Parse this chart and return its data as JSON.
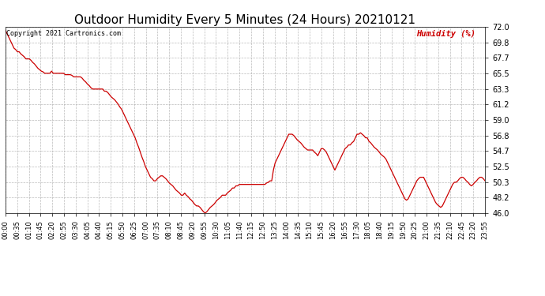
{
  "title": "Outdoor Humidity Every 5 Minutes (24 Hours) 20210121",
  "ylabel": "Humidity (%)",
  "copyright": "Copyright 2021 Cartronics.com",
  "line_color": "#cc0000",
  "bg_color": "#ffffff",
  "grid_color": "#aaaaaa",
  "ylim": [
    46.0,
    72.0
  ],
  "yticks": [
    46.0,
    48.2,
    50.3,
    52.5,
    54.7,
    56.8,
    59.0,
    61.2,
    63.3,
    65.5,
    67.7,
    69.8,
    72.0
  ],
  "humidity_values": [
    71.5,
    71.0,
    70.5,
    70.0,
    69.5,
    69.0,
    68.8,
    68.5,
    68.5,
    68.2,
    68.0,
    67.8,
    67.5,
    67.5,
    67.5,
    67.3,
    67.0,
    66.8,
    66.5,
    66.2,
    66.0,
    65.8,
    65.7,
    65.5,
    65.5,
    65.5,
    65.5,
    65.8,
    65.5,
    65.5,
    65.5,
    65.5,
    65.5,
    65.5,
    65.5,
    65.3,
    65.3,
    65.3,
    65.3,
    65.2,
    65.0,
    65.0,
    65.0,
    65.0,
    65.0,
    64.8,
    64.5,
    64.3,
    64.0,
    63.8,
    63.5,
    63.3,
    63.3,
    63.3,
    63.3,
    63.3,
    63.3,
    63.3,
    63.0,
    63.0,
    62.8,
    62.5,
    62.2,
    62.0,
    61.8,
    61.5,
    61.2,
    60.8,
    60.5,
    60.0,
    59.5,
    59.0,
    58.5,
    58.0,
    57.5,
    57.0,
    56.5,
    55.8,
    55.2,
    54.5,
    53.8,
    53.2,
    52.5,
    52.0,
    51.5,
    51.0,
    50.8,
    50.5,
    50.5,
    50.8,
    51.0,
    51.2,
    51.2,
    51.0,
    50.8,
    50.5,
    50.2,
    50.0,
    49.8,
    49.5,
    49.2,
    49.0,
    48.8,
    48.5,
    48.5,
    48.8,
    48.5,
    48.3,
    48.0,
    47.8,
    47.5,
    47.2,
    47.0,
    47.0,
    46.8,
    46.5,
    46.2,
    46.0,
    46.2,
    46.5,
    46.8,
    47.0,
    47.2,
    47.5,
    47.8,
    48.0,
    48.2,
    48.5,
    48.5,
    48.5,
    48.8,
    49.0,
    49.2,
    49.5,
    49.5,
    49.8,
    49.8,
    50.0,
    50.0,
    50.0,
    50.0,
    50.0,
    50.0,
    50.0,
    50.0,
    50.0,
    50.0,
    50.0,
    50.0,
    50.0,
    50.0,
    50.0,
    50.0,
    50.2,
    50.3,
    50.5,
    50.5,
    52.0,
    53.0,
    53.5,
    54.0,
    54.5,
    55.0,
    55.5,
    56.0,
    56.5,
    57.0,
    57.0,
    57.0,
    56.8,
    56.5,
    56.2,
    56.0,
    55.8,
    55.5,
    55.2,
    55.0,
    54.8,
    54.8,
    54.8,
    54.8,
    54.5,
    54.3,
    54.0,
    54.5,
    55.0,
    55.0,
    54.8,
    54.5,
    54.0,
    53.5,
    53.0,
    52.5,
    52.0,
    52.5,
    53.0,
    53.5,
    54.0,
    54.5,
    55.0,
    55.2,
    55.5,
    55.5,
    55.8,
    56.0,
    56.5,
    57.0,
    57.0,
    57.2,
    57.0,
    56.8,
    56.5,
    56.5,
    56.0,
    55.8,
    55.5,
    55.2,
    55.0,
    54.8,
    54.5,
    54.2,
    54.0,
    53.8,
    53.5,
    53.0,
    52.5,
    52.0,
    51.5,
    51.0,
    50.5,
    50.0,
    49.5,
    49.0,
    48.5,
    48.0,
    47.8,
    48.0,
    48.5,
    49.0,
    49.5,
    50.0,
    50.5,
    50.8,
    51.0,
    51.0,
    51.0,
    50.5,
    50.0,
    49.5,
    49.0,
    48.5,
    48.0,
    47.5,
    47.2,
    47.0,
    46.8,
    47.0,
    47.5,
    48.0,
    48.5,
    49.0,
    49.5,
    50.0,
    50.3,
    50.3,
    50.5,
    50.8,
    51.0,
    51.0,
    50.8,
    50.5,
    50.3,
    50.0,
    49.8,
    50.0,
    50.3,
    50.5,
    50.8,
    51.0,
    51.0,
    50.8,
    50.5
  ],
  "xtick_labels": [
    "00:00",
    "00:35",
    "01:10",
    "01:45",
    "02:20",
    "02:55",
    "03:30",
    "04:05",
    "04:40",
    "05:15",
    "05:50",
    "06:25",
    "07:00",
    "07:35",
    "08:10",
    "08:45",
    "09:20",
    "09:55",
    "10:30",
    "11:05",
    "11:40",
    "12:15",
    "12:50",
    "13:25",
    "14:00",
    "14:35",
    "15:10",
    "15:45",
    "16:20",
    "16:55",
    "17:30",
    "18:05",
    "18:40",
    "19:15",
    "19:50",
    "20:25",
    "21:00",
    "21:35",
    "22:10",
    "22:45",
    "23:20",
    "23:55"
  ],
  "title_fontsize": 11,
  "tick_fontsize": 7,
  "xtick_fontsize": 6
}
